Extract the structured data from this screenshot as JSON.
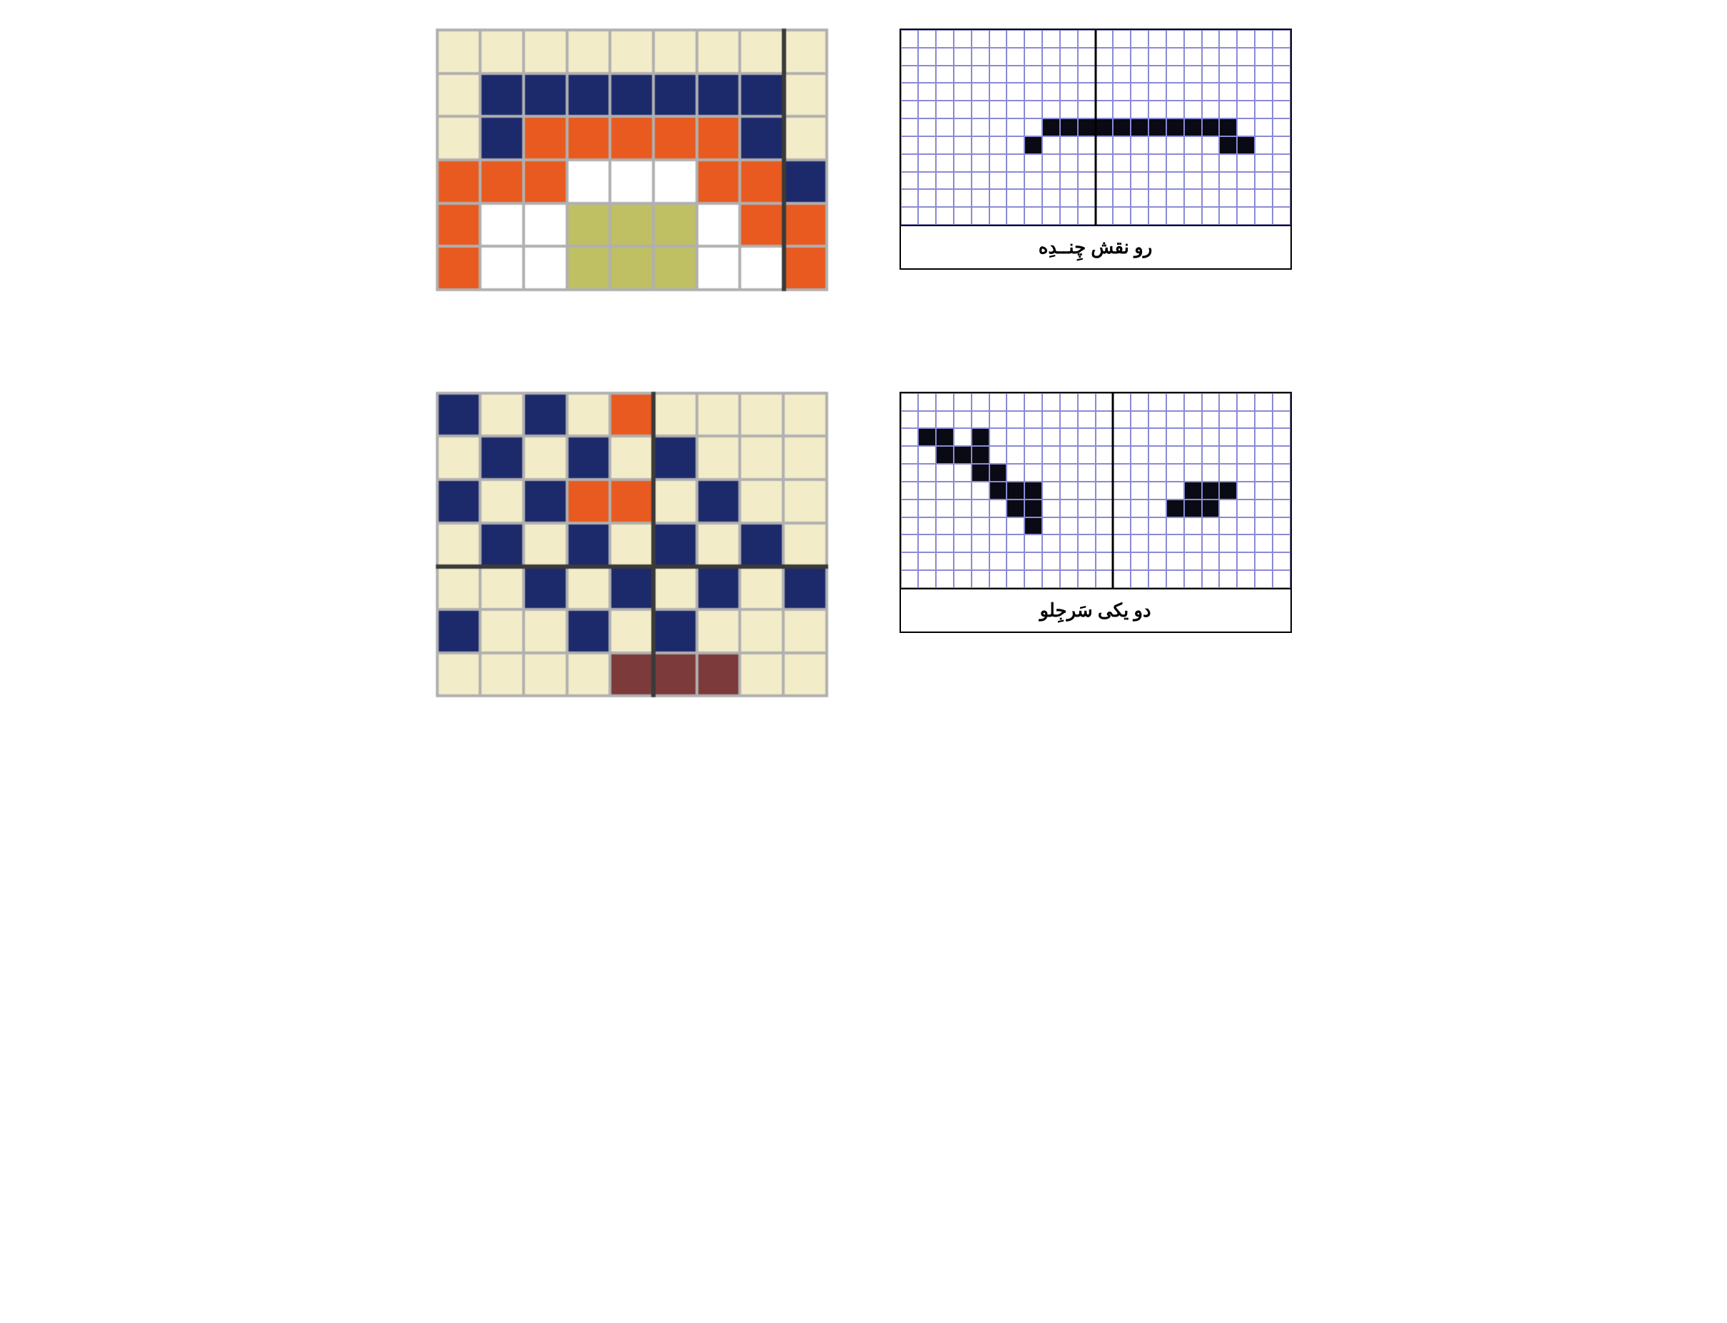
{
  "colors": {
    "cream": "#f3ecc9",
    "navy": "#1c2a6b",
    "orange": "#e85a1f",
    "white": "#ffffff",
    "olive": "#bfc064",
    "maroon": "#7d3a3a",
    "gap": "#b0b0b0",
    "bw_grid": "#8a8ad4",
    "bw_fill": "#0a0a14",
    "bw_bg": "#ffffff"
  },
  "captions": {
    "top": "رو نقش چِنــدِه",
    "bottom": "دو یکی سَرجِلو"
  },
  "top_left": {
    "cols": 9,
    "rows": 6,
    "cell_border_width": 4,
    "dark_vline_after_col": 8,
    "grid": [
      [
        "cream",
        "cream",
        "cream",
        "cream",
        "cream",
        "cream",
        "cream",
        "cream",
        "cream"
      ],
      [
        "cream",
        "navy",
        "navy",
        "navy",
        "navy",
        "navy",
        "navy",
        "navy",
        "cream"
      ],
      [
        "cream",
        "navy",
        "orange",
        "orange",
        "orange",
        "orange",
        "orange",
        "navy",
        "cream"
      ],
      [
        "orange",
        "orange",
        "orange",
        "white",
        "white",
        "white",
        "orange",
        "orange",
        "navy"
      ],
      [
        "orange",
        "white",
        "white",
        "olive",
        "olive",
        "olive",
        "white",
        "orange",
        "orange"
      ],
      [
        "orange",
        "white",
        "white",
        "olive",
        "olive",
        "olive",
        "white",
        "white",
        "orange"
      ]
    ]
  },
  "top_right": {
    "cols": 22,
    "rows": 11,
    "vline_after_col": 11,
    "filled": [
      [
        5,
        8
      ],
      [
        5,
        9
      ],
      [
        5,
        10
      ],
      [
        5,
        11
      ],
      [
        5,
        12
      ],
      [
        5,
        13
      ],
      [
        5,
        14
      ],
      [
        5,
        15
      ],
      [
        5,
        16
      ],
      [
        5,
        17
      ],
      [
        5,
        18
      ],
      [
        6,
        7
      ],
      [
        6,
        18
      ],
      [
        6,
        19
      ]
    ]
  },
  "bottom_left": {
    "cols": 9,
    "rows": 7,
    "cell_border_width": 4,
    "dark_vline_after_col": 5,
    "dark_hline_after_row": 4,
    "grid": [
      [
        "navy",
        "cream",
        "navy",
        "cream",
        "orange",
        "cream",
        "cream",
        "cream",
        "cream"
      ],
      [
        "cream",
        "navy",
        "cream",
        "navy",
        "cream",
        "navy",
        "cream",
        "cream",
        "cream"
      ],
      [
        "navy",
        "cream",
        "navy",
        "orange",
        "orange",
        "cream",
        "navy",
        "cream",
        "cream"
      ],
      [
        "cream",
        "navy",
        "cream",
        "navy",
        "cream",
        "navy",
        "cream",
        "navy",
        "cream"
      ],
      [
        "cream",
        "cream",
        "navy",
        "cream",
        "navy",
        "cream",
        "navy",
        "cream",
        "navy"
      ],
      [
        "navy",
        "cream",
        "cream",
        "navy",
        "cream",
        "navy",
        "cream",
        "cream",
        "cream"
      ],
      [
        "cream",
        "cream",
        "cream",
        "cream",
        "maroon",
        "maroon",
        "maroon",
        "cream",
        "cream"
      ]
    ]
  },
  "bottom_right": {
    "cols": 22,
    "rows": 11,
    "vline_after_col": 12,
    "filled": [
      [
        2,
        1
      ],
      [
        2,
        2
      ],
      [
        3,
        2
      ],
      [
        3,
        3
      ],
      [
        2,
        4
      ],
      [
        3,
        4
      ],
      [
        4,
        4
      ],
      [
        4,
        5
      ],
      [
        5,
        5
      ],
      [
        5,
        6
      ],
      [
        6,
        6
      ],
      [
        5,
        7
      ],
      [
        6,
        7
      ],
      [
        7,
        7
      ],
      [
        6,
        15
      ],
      [
        6,
        16
      ],
      [
        5,
        16
      ],
      [
        5,
        17
      ],
      [
        6,
        17
      ],
      [
        5,
        18
      ]
    ]
  },
  "layout": {
    "bg": "#ffffff",
    "caption_fontsize": 26,
    "caption_fontweight": "bold"
  }
}
